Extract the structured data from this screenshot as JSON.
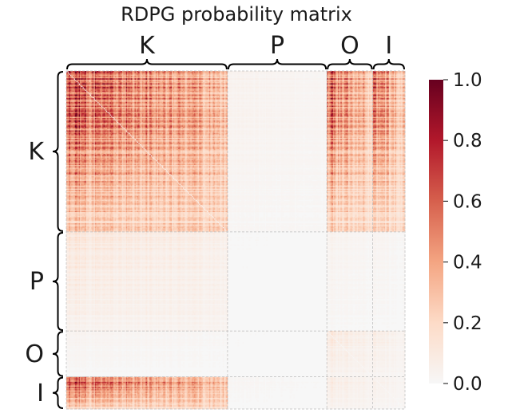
{
  "chart_data": {
    "type": "heatmap",
    "title": "RDPG probability matrix",
    "blocks": [
      {
        "label": "K",
        "size": 130
      },
      {
        "label": "P",
        "size": 80
      },
      {
        "label": "O",
        "size": 37
      },
      {
        "label": "I",
        "size": 26
      }
    ],
    "block_probability": [
      [
        0.75,
        0.04,
        0.7,
        0.65
      ],
      [
        0.12,
        0.01,
        0.04,
        0.03
      ],
      [
        0.03,
        0.01,
        0.12,
        0.08
      ],
      [
        0.72,
        0.02,
        0.1,
        0.06
      ]
    ],
    "colorbar": {
      "range": [
        0,
        1
      ],
      "ticks": [
        "0.0",
        "0.2",
        "0.4",
        "0.6",
        "0.8",
        "1.0"
      ],
      "colormap": "RdBu_r",
      "colors": [
        "#f7f7f7",
        "#fddbc7",
        "#f4a582",
        "#d6604d",
        "#b2182b",
        "#67001f"
      ]
    },
    "gridlines": true,
    "grid_style": "dashed"
  }
}
